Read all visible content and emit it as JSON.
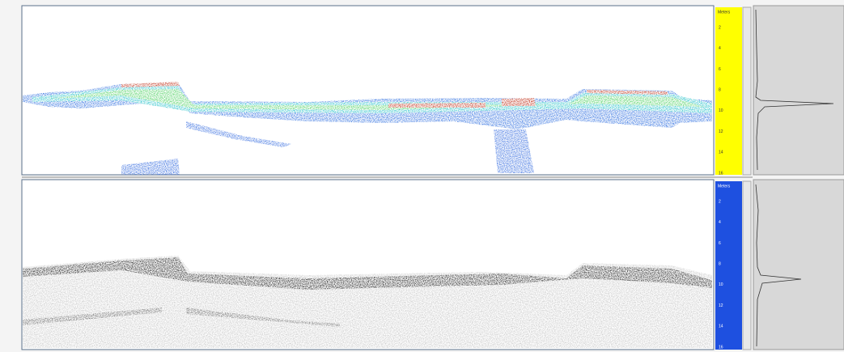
{
  "panels": [
    {
      "scale_label": "Meters",
      "ticks": [
        "2",
        "4",
        "6",
        "8",
        "10",
        "12",
        "14",
        "16"
      ]
    },
    {
      "scale_label": "Meters",
      "ticks": [
        "2",
        "4",
        "6",
        "8",
        "10",
        "12",
        "14",
        "16"
      ]
    }
  ]
}
